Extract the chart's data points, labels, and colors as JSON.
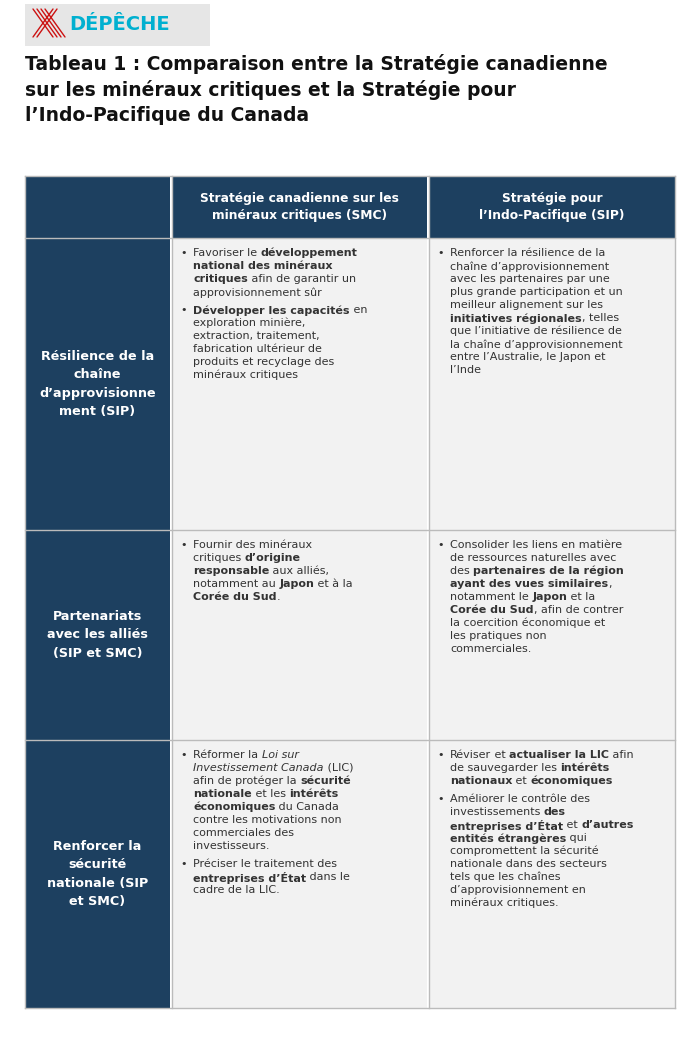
{
  "title_line1": "Tableau 1 : Comparaison entre la Stratégie canadienne",
  "title_line2": "sur les minéraux critiques et la Stratégie pour",
  "title_line3": "l’Indo-Pacifique du Canada",
  "header_bg": "#1d4060",
  "row_bg_dark": "#1d4060",
  "row_bg_light": "#f2f2f2",
  "sep_color": "#bbbbbb",
  "col1_header_lines": [
    "Stratégie canadienne sur les",
    "minéraux critiques (SMC)"
  ],
  "col2_header_lines": [
    "Stratégie pour",
    "l’Indo-Pacifique (SIP)"
  ],
  "rows": [
    {
      "row_header": [
        "Résilience de la",
        "chaîne",
        "d’approvisionne",
        "ment (SIP)"
      ],
      "col1": [
        [
          {
            "t": "Favoriser le ",
            "b": false,
            "i": false
          },
          {
            "t": "développement",
            "b": true,
            "i": false
          },
          {
            "newline": true
          },
          {
            "t": "national des minéraux",
            "b": true,
            "i": false
          },
          {
            "newline": true
          },
          {
            "t": "critiques",
            "b": true,
            "i": false
          },
          {
            "t": " afin de garantir un",
            "b": false,
            "i": false
          },
          {
            "newline": true
          },
          {
            "t": "approvisionnement sûr",
            "b": false,
            "i": false
          }
        ],
        [
          {
            "t": "Développer les capacités",
            "b": true,
            "i": false
          },
          {
            "t": " en",
            "b": false,
            "i": false
          },
          {
            "newline": true
          },
          {
            "t": "exploration minière,",
            "b": false,
            "i": false
          },
          {
            "newline": true
          },
          {
            "t": "extraction, traitement,",
            "b": false,
            "i": false
          },
          {
            "newline": true
          },
          {
            "t": "fabrication ultérieur de",
            "b": false,
            "i": false
          },
          {
            "newline": true
          },
          {
            "t": "produits et recyclage des",
            "b": false,
            "i": false
          },
          {
            "newline": true
          },
          {
            "t": "minéraux critiques",
            "b": false,
            "i": false
          }
        ]
      ],
      "col2": [
        [
          {
            "t": "Renforcer la résilience de la",
            "b": false,
            "i": false
          },
          {
            "newline": true
          },
          {
            "t": "chaîne d’approvisionnement",
            "b": false,
            "i": false
          },
          {
            "newline": true
          },
          {
            "t": "avec les partenaires par une",
            "b": false,
            "i": false
          },
          {
            "newline": true
          },
          {
            "t": "plus grande participation et un",
            "b": false,
            "i": false
          },
          {
            "newline": true
          },
          {
            "t": "meilleur alignement sur les",
            "b": false,
            "i": false
          },
          {
            "newline": true
          },
          {
            "t": "initiatives régionales",
            "b": true,
            "i": false
          },
          {
            "t": ", telles",
            "b": false,
            "i": false
          },
          {
            "newline": true
          },
          {
            "t": "que l’initiative de résilience de",
            "b": false,
            "i": false
          },
          {
            "newline": true
          },
          {
            "t": "la chaîne d’approvisionnement",
            "b": false,
            "i": false
          },
          {
            "newline": true
          },
          {
            "t": "entre l’Australie, le Japon et",
            "b": false,
            "i": false
          },
          {
            "newline": true
          },
          {
            "t": "l’Inde",
            "b": false,
            "i": false
          }
        ]
      ]
    },
    {
      "row_header": [
        "Partenariats",
        "avec les alliés",
        "(SIP et SMC)"
      ],
      "col1": [
        [
          {
            "t": "Fournir des minéraux",
            "b": false,
            "i": false
          },
          {
            "newline": true
          },
          {
            "t": "critiques ",
            "b": false,
            "i": false
          },
          {
            "t": "d’origine",
            "b": true,
            "i": false
          },
          {
            "newline": true
          },
          {
            "t": "responsable",
            "b": true,
            "i": false
          },
          {
            "t": " aux alliés,",
            "b": false,
            "i": false
          },
          {
            "newline": true
          },
          {
            "t": "notamment au ",
            "b": false,
            "i": false
          },
          {
            "t": "Japon",
            "b": true,
            "i": false
          },
          {
            "t": " et à la",
            "b": false,
            "i": false
          },
          {
            "newline": true
          },
          {
            "t": "Corée du Sud",
            "b": true,
            "i": false
          },
          {
            "t": ".",
            "b": false,
            "i": false
          }
        ]
      ],
      "col2": [
        [
          {
            "t": "Consolider les liens en matière",
            "b": false,
            "i": false
          },
          {
            "newline": true
          },
          {
            "t": "de ressources naturelles avec",
            "b": false,
            "i": false
          },
          {
            "newline": true
          },
          {
            "t": "des ",
            "b": false,
            "i": false
          },
          {
            "t": "partenaires de la région",
            "b": true,
            "i": false
          },
          {
            "newline": true
          },
          {
            "t": "ayant des vues similaires",
            "b": true,
            "i": false
          },
          {
            "t": ",",
            "b": false,
            "i": false
          },
          {
            "newline": true
          },
          {
            "t": "notamment le ",
            "b": false,
            "i": false
          },
          {
            "t": "Japon",
            "b": true,
            "i": false
          },
          {
            "t": " et la",
            "b": false,
            "i": false
          },
          {
            "newline": true
          },
          {
            "t": "Corée du Sud",
            "b": true,
            "i": false
          },
          {
            "t": ", afin de contrer",
            "b": false,
            "i": false
          },
          {
            "newline": true
          },
          {
            "t": "la coercition économique et",
            "b": false,
            "i": false
          },
          {
            "newline": true
          },
          {
            "t": "les pratiques non",
            "b": false,
            "i": false
          },
          {
            "newline": true
          },
          {
            "t": "commerciales.",
            "b": false,
            "i": false
          }
        ]
      ]
    },
    {
      "row_header": [
        "Renforcer la",
        "sécurité",
        "nationale (SIP",
        "et SMC)"
      ],
      "col1": [
        [
          {
            "t": "Réformer la ",
            "b": false,
            "i": false
          },
          {
            "t": "Loi sur",
            "b": false,
            "i": true
          },
          {
            "newline": true
          },
          {
            "t": "Investissement Canada",
            "b": false,
            "i": true
          },
          {
            "t": " (LIC)",
            "b": false,
            "i": false
          },
          {
            "newline": true
          },
          {
            "t": "afin de protéger la ",
            "b": false,
            "i": false
          },
          {
            "t": "sécurité",
            "b": true,
            "i": false
          },
          {
            "newline": true
          },
          {
            "t": "nationale",
            "b": true,
            "i": false
          },
          {
            "t": " et les ",
            "b": false,
            "i": false
          },
          {
            "t": "intérêts",
            "b": true,
            "i": false
          },
          {
            "newline": true
          },
          {
            "t": "économiques",
            "b": true,
            "i": false
          },
          {
            "t": " du Canada",
            "b": false,
            "i": false
          },
          {
            "newline": true
          },
          {
            "t": "contre les motivations non",
            "b": false,
            "i": false
          },
          {
            "newline": true
          },
          {
            "t": "commerciales des",
            "b": false,
            "i": false
          },
          {
            "newline": true
          },
          {
            "t": "investisseurs.",
            "b": false,
            "i": false
          }
        ],
        [
          {
            "t": "Préciser le traitement des",
            "b": false,
            "i": false
          },
          {
            "newline": true
          },
          {
            "t": "entreprises d’État",
            "b": true,
            "i": false
          },
          {
            "t": " dans le",
            "b": false,
            "i": false
          },
          {
            "newline": true
          },
          {
            "t": "cadre de la LIC.",
            "b": false,
            "i": false
          }
        ]
      ],
      "col2": [
        [
          {
            "t": "Réviser",
            "b": false,
            "i": false
          },
          {
            "t": " et ",
            "b": false,
            "i": false
          },
          {
            "t": "actualiser la LIC",
            "b": true,
            "i": false
          },
          {
            "t": " afin",
            "b": false,
            "i": false
          },
          {
            "newline": true
          },
          {
            "t": "de sauvegarder les ",
            "b": false,
            "i": false
          },
          {
            "t": "intérêts",
            "b": true,
            "i": false
          },
          {
            "newline": true
          },
          {
            "t": "nationaux",
            "b": true,
            "i": false
          },
          {
            "t": " et ",
            "b": false,
            "i": false
          },
          {
            "t": "économiques",
            "b": true,
            "i": false
          }
        ],
        [
          {
            "t": "Améliorer le contrôle des",
            "b": false,
            "i": false
          },
          {
            "newline": true
          },
          {
            "t": "investissements ",
            "b": false,
            "i": false
          },
          {
            "t": "des",
            "b": true,
            "i": false
          },
          {
            "newline": true
          },
          {
            "t": "entreprises d’État",
            "b": true,
            "i": false
          },
          {
            "t": " et ",
            "b": false,
            "i": false
          },
          {
            "t": "d’autres",
            "b": true,
            "i": false
          },
          {
            "newline": true
          },
          {
            "t": "entités étrangères",
            "b": true,
            "i": false
          },
          {
            "t": " qui",
            "b": false,
            "i": false
          },
          {
            "newline": true
          },
          {
            "t": "compromettent la sécurité",
            "b": false,
            "i": false
          },
          {
            "newline": true
          },
          {
            "t": "nationale dans des secteurs",
            "b": false,
            "i": false
          },
          {
            "newline": true
          },
          {
            "t": "tels que les chaînes",
            "b": false,
            "i": false
          },
          {
            "newline": true
          },
          {
            "t": "d’approvisionnement en",
            "b": false,
            "i": false
          },
          {
            "newline": true
          },
          {
            "t": "minéraux critiques.",
            "b": false,
            "i": false
          }
        ]
      ]
    }
  ]
}
